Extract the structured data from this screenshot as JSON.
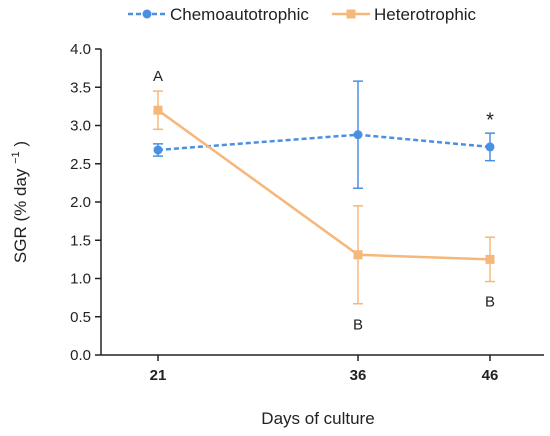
{
  "chart_data": {
    "type": "line",
    "x": [
      21,
      36,
      46
    ],
    "xlabel": "Days of culture",
    "ylabel": "SGR (% day",
    "ylabel_sup": "−1",
    "ylabel_close": ")",
    "ylim": [
      0.0,
      4.0
    ],
    "y_ticks": [
      "0.0",
      "0.5",
      "1.0",
      "1.5",
      "2.0",
      "2.5",
      "3.0",
      "3.5",
      "4.0"
    ],
    "x_ticks": [
      "21",
      "36",
      "46"
    ],
    "legend_position": "top",
    "series": [
      {
        "name": "Chemoautotrophic",
        "color": "#4A90E2",
        "line_style": "dashed",
        "marker": "circle",
        "values": [
          2.68,
          2.88,
          2.72
        ],
        "error": [
          0.08,
          0.7,
          0.18
        ]
      },
      {
        "name": "Heterotrophic",
        "color": "#F5B87A",
        "line_style": "solid",
        "marker": "square",
        "values": [
          3.2,
          1.31,
          1.25
        ],
        "error": [
          0.25,
          0.64,
          0.29
        ]
      }
    ],
    "annotations": [
      {
        "x": 21,
        "y": 3.65,
        "text": "A"
      },
      {
        "x": 36,
        "y": 0.4,
        "text": "B"
      },
      {
        "x": 46,
        "y": 0.7,
        "text": "B"
      },
      {
        "x": 46,
        "y": 3.05,
        "text": "*"
      }
    ]
  }
}
